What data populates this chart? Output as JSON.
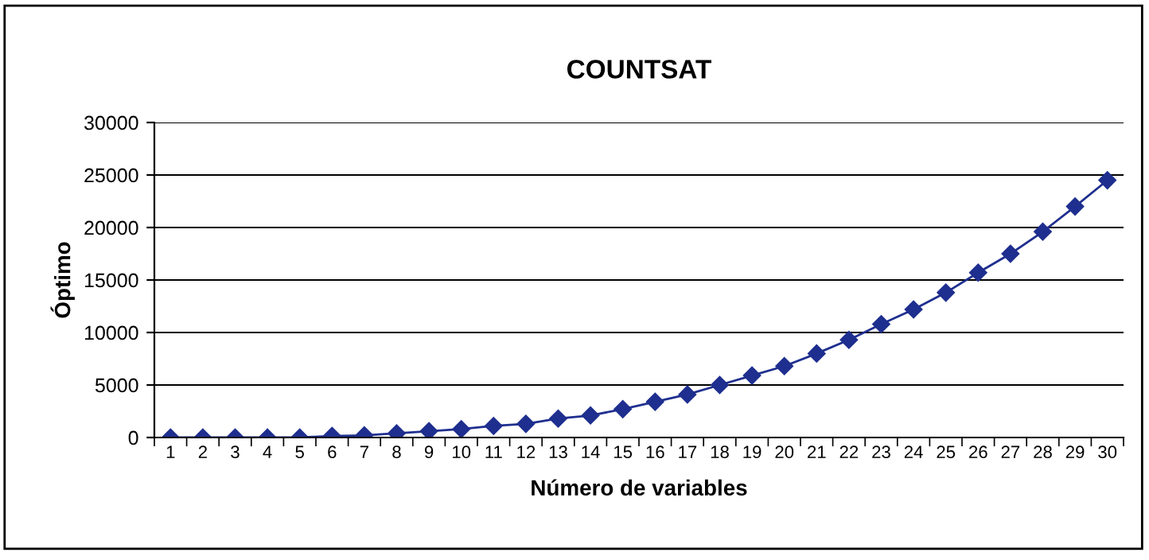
{
  "chart_data": {
    "type": "line",
    "title": "COUNTSAT",
    "xlabel": "Número de variables",
    "ylabel": "Óptimo",
    "categories": [
      "1",
      "2",
      "3",
      "4",
      "5",
      "6",
      "7",
      "8",
      "9",
      "10",
      "11",
      "12",
      "13",
      "14",
      "15",
      "16",
      "17",
      "18",
      "19",
      "20",
      "21",
      "22",
      "23",
      "24",
      "25",
      "26",
      "27",
      "28",
      "29",
      "30"
    ],
    "series": [
      {
        "color": "#1f2f8f",
        "values": [
          0,
          0,
          0,
          0,
          0,
          150,
          200,
          400,
          600,
          800,
          1100,
          1300,
          1800,
          2100,
          2700,
          3400,
          4100,
          5000,
          5900,
          6800,
          8000,
          9300,
          10800,
          12200,
          13800,
          15700,
          17500,
          19600,
          22000,
          24500
        ]
      }
    ],
    "ylim": [
      0,
      30000
    ],
    "yticks": [
      0,
      5000,
      10000,
      15000,
      20000,
      25000,
      30000
    ],
    "grid": "y",
    "marker": "diamond",
    "line_style": "solid",
    "legend": false
  }
}
